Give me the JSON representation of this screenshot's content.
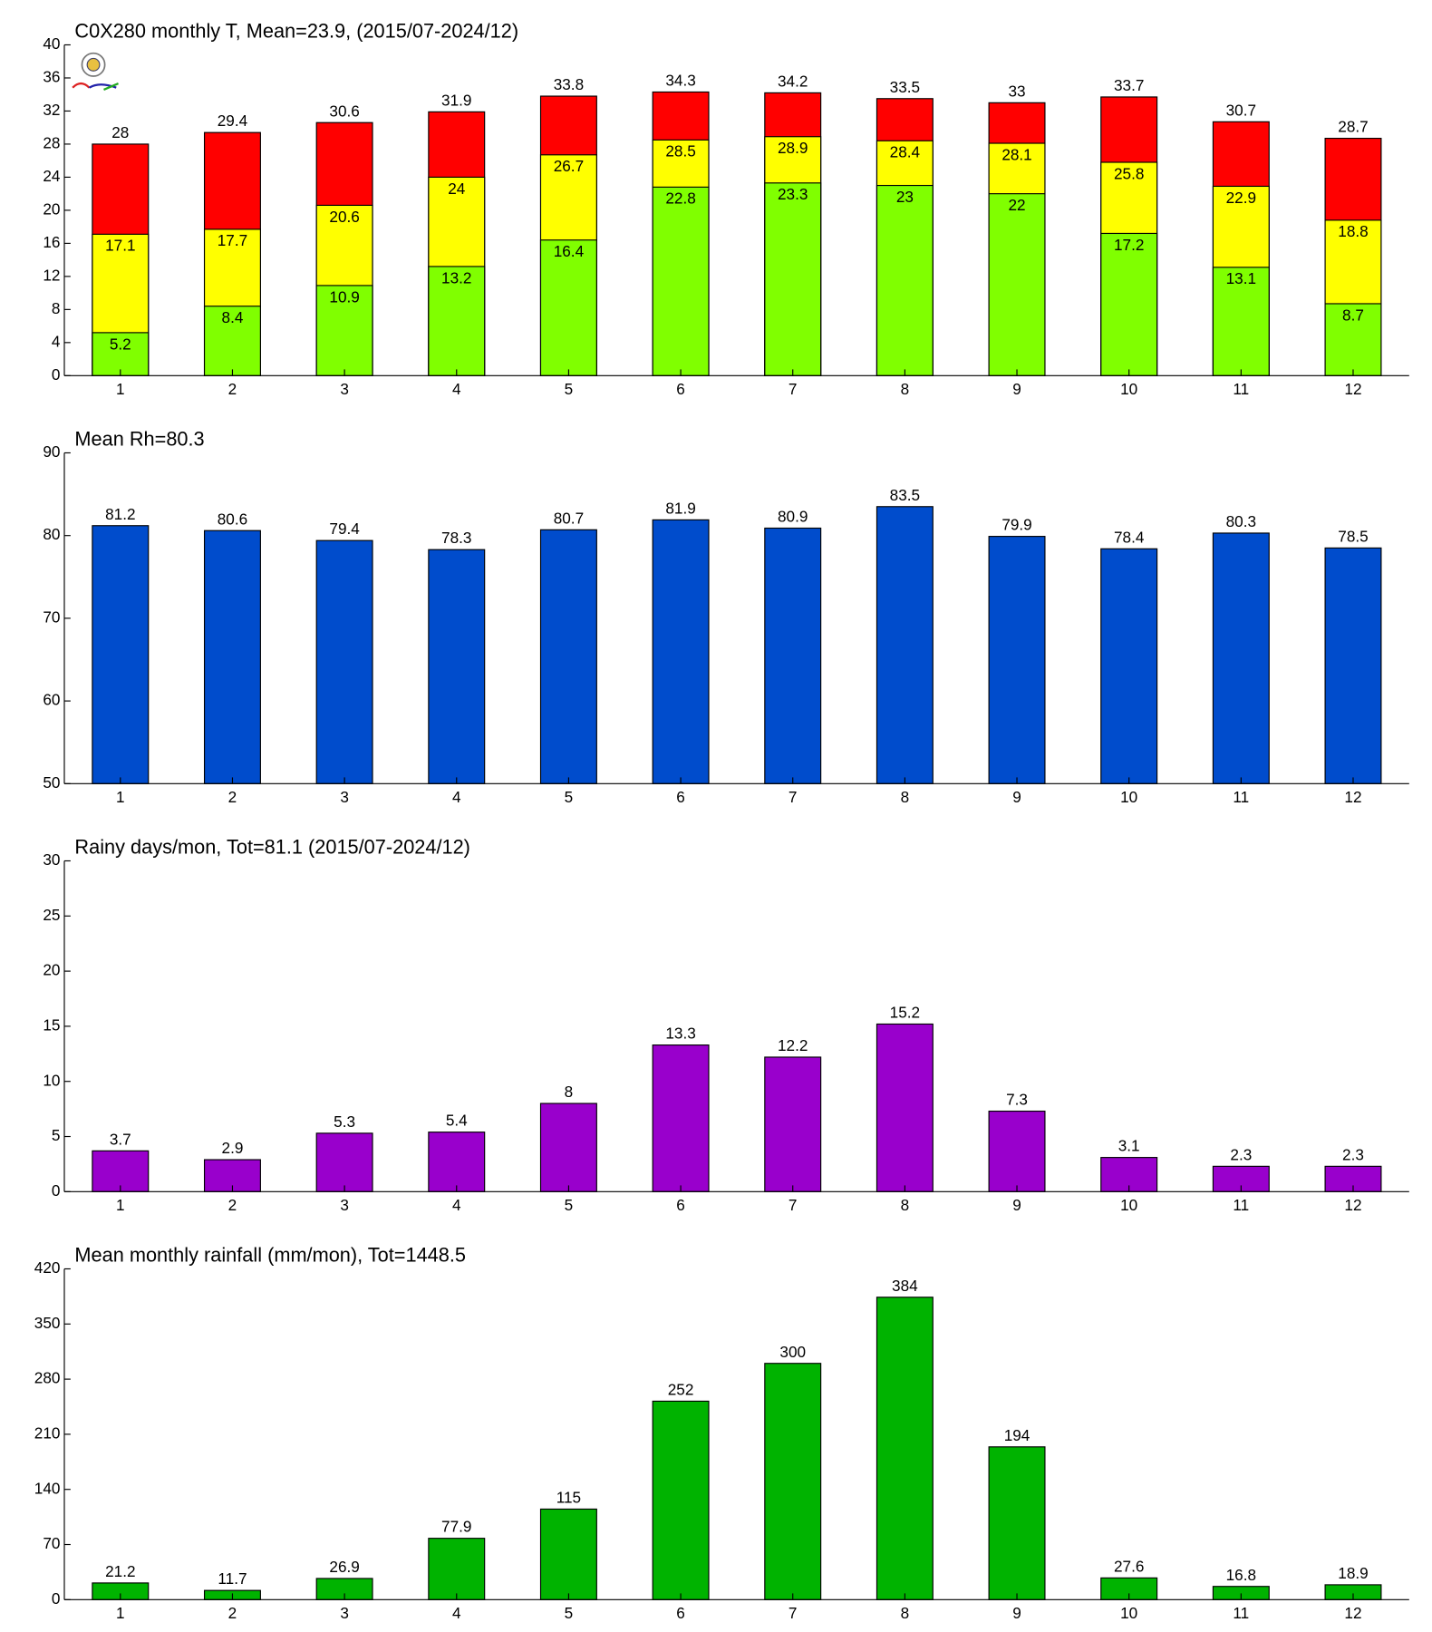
{
  "chart_data": [
    {
      "type": "overlapped_bar",
      "title": "C0X280 monthly T, Mean=23.9, (2015/07-2024/12)",
      "categories": [
        1,
        2,
        3,
        4,
        5,
        6,
        7,
        8,
        9,
        10,
        11,
        12
      ],
      "series": [
        {
          "color": "#ff0000",
          "values": [
            28,
            29.4,
            30.6,
            31.9,
            33.8,
            34.3,
            34.2,
            33.5,
            33,
            33.7,
            30.7,
            28.7
          ]
        },
        {
          "color": "#ffff00",
          "values": [
            17.1,
            17.7,
            20.6,
            24,
            26.7,
            28.5,
            28.9,
            28.4,
            28.1,
            25.8,
            22.9,
            18.8
          ]
        },
        {
          "color": "#80ff00",
          "values": [
            5.2,
            8.4,
            10.9,
            13.2,
            16.4,
            22.8,
            23.3,
            23,
            22,
            17.2,
            13.1,
            8.7
          ]
        }
      ],
      "ylim": [
        0,
        40
      ],
      "yticks": [
        0,
        4,
        8,
        12,
        16,
        20,
        24,
        28,
        32,
        36,
        40
      ]
    },
    {
      "type": "bar",
      "title": "Mean Rh=80.3",
      "categories": [
        1,
        2,
        3,
        4,
        5,
        6,
        7,
        8,
        9,
        10,
        11,
        12
      ],
      "values": [
        81.2,
        80.6,
        79.4,
        78.3,
        80.7,
        81.9,
        80.9,
        83.5,
        79.9,
        78.4,
        80.3,
        78.5
      ],
      "color": "#004ccc",
      "ylim": [
        50,
        90
      ],
      "yticks": [
        50,
        60,
        70,
        80,
        90
      ]
    },
    {
      "type": "bar",
      "title": "Rainy days/mon, Tot=81.1 (2015/07-2024/12)",
      "categories": [
        1,
        2,
        3,
        4,
        5,
        6,
        7,
        8,
        9,
        10,
        11,
        12
      ],
      "values": [
        3.7,
        2.9,
        5.3,
        5.4,
        8,
        13.3,
        12.2,
        15.2,
        7.3,
        3.1,
        2.3,
        2.3
      ],
      "color": "#9900cc",
      "ylim": [
        0,
        30
      ],
      "yticks": [
        0,
        5,
        10,
        15,
        20,
        25,
        30
      ]
    },
    {
      "type": "bar",
      "title": "Mean monthly rainfall (mm/mon), Tot=1448.5",
      "categories": [
        1,
        2,
        3,
        4,
        5,
        6,
        7,
        8,
        9,
        10,
        11,
        12
      ],
      "values": [
        21.2,
        11.7,
        26.9,
        77.9,
        115,
        252,
        300,
        384,
        194,
        27.6,
        16.8,
        18.9
      ],
      "color": "#00b300",
      "ylim": [
        0,
        420
      ],
      "yticks": [
        0,
        70,
        140,
        210,
        280,
        350,
        420
      ]
    }
  ]
}
